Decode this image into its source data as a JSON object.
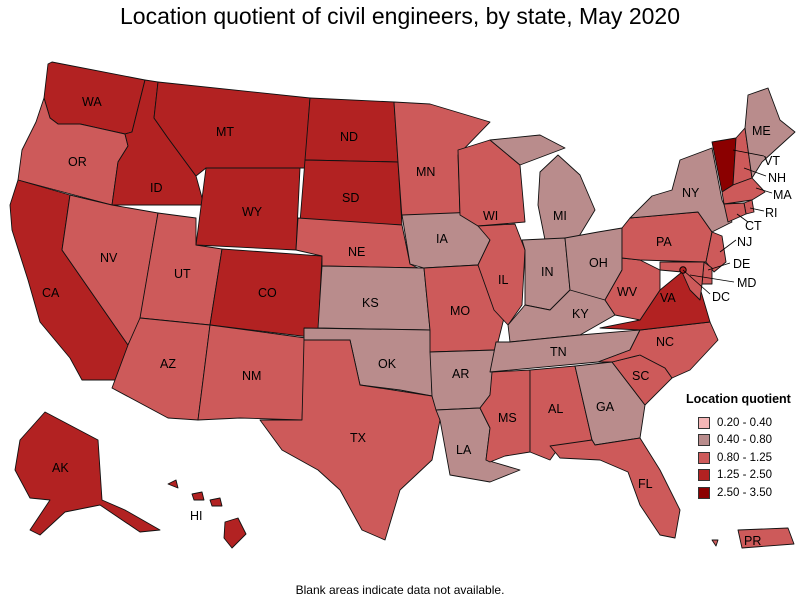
{
  "title": "Location quotient of civil engineers, by state, May 2020",
  "footnote": "Blank areas indicate data not available.",
  "legend": {
    "title": "Location quotient",
    "items": [
      {
        "label": "0.20 - 0.40",
        "color": "#f4b6b6"
      },
      {
        "label": "0.40 - 0.80",
        "color": "#b98c8c"
      },
      {
        "label": "0.80 - 1.25",
        "color": "#cd5a5a"
      },
      {
        "label": "1.25 - 2.50",
        "color": "#b22222"
      },
      {
        "label": "2.50 - 3.50",
        "color": "#8b0000"
      }
    ]
  },
  "states": {
    "WA": {
      "label": "WA",
      "class": "1.25 - 2.50"
    },
    "OR": {
      "label": "OR",
      "class": "0.80 - 1.25"
    },
    "CA": {
      "label": "CA",
      "class": "1.25 - 2.50"
    },
    "ID": {
      "label": "ID",
      "class": "1.25 - 2.50"
    },
    "NV": {
      "label": "NV",
      "class": "0.80 - 1.25"
    },
    "UT": {
      "label": "UT",
      "class": "0.80 - 1.25"
    },
    "AZ": {
      "label": "AZ",
      "class": "0.80 - 1.25"
    },
    "MT": {
      "label": "MT",
      "class": "1.25 - 2.50"
    },
    "WY": {
      "label": "WY",
      "class": "1.25 - 2.50"
    },
    "CO": {
      "label": "CO",
      "class": "1.25 - 2.50"
    },
    "NM": {
      "label": "NM",
      "class": "0.80 - 1.25"
    },
    "ND": {
      "label": "ND",
      "class": "1.25 - 2.50"
    },
    "SD": {
      "label": "SD",
      "class": "1.25 - 2.50"
    },
    "NE": {
      "label": "NE",
      "class": "0.80 - 1.25"
    },
    "KS": {
      "label": "KS",
      "class": "0.40 - 0.80"
    },
    "OK": {
      "label": "OK",
      "class": "0.40 - 0.80"
    },
    "TX": {
      "label": "TX",
      "class": "0.80 - 1.25"
    },
    "MN": {
      "label": "MN",
      "class": "0.80 - 1.25"
    },
    "IA": {
      "label": "IA",
      "class": "0.40 - 0.80"
    },
    "MO": {
      "label": "MO",
      "class": "0.80 - 1.25"
    },
    "AR": {
      "label": "AR",
      "class": "0.40 - 0.80"
    },
    "LA": {
      "label": "LA",
      "class": "0.40 - 0.80"
    },
    "WI": {
      "label": "WI",
      "class": "0.80 - 1.25"
    },
    "IL": {
      "label": "IL",
      "class": "0.80 - 1.25"
    },
    "MI": {
      "label": "MI",
      "class": "0.40 - 0.80"
    },
    "IN": {
      "label": "IN",
      "class": "0.40 - 0.80"
    },
    "OH": {
      "label": "OH",
      "class": "0.40 - 0.80"
    },
    "KY": {
      "label": "KY",
      "class": "0.40 - 0.80"
    },
    "TN": {
      "label": "TN",
      "class": "0.40 - 0.80"
    },
    "MS": {
      "label": "MS",
      "class": "0.80 - 1.25"
    },
    "AL": {
      "label": "AL",
      "class": "0.80 - 1.25"
    },
    "GA": {
      "label": "GA",
      "class": "0.40 - 0.80"
    },
    "FL": {
      "label": "FL",
      "class": "0.80 - 1.25"
    },
    "SC": {
      "label": "SC",
      "class": "0.80 - 1.25"
    },
    "NC": {
      "label": "NC",
      "class": "0.80 - 1.25"
    },
    "VA": {
      "label": "VA",
      "class": "1.25 - 2.50"
    },
    "WV": {
      "label": "WV",
      "class": "0.80 - 1.25"
    },
    "PA": {
      "label": "PA",
      "class": "0.80 - 1.25"
    },
    "NY": {
      "label": "NY",
      "class": "0.40 - 0.80"
    },
    "VT": {
      "label": "VT",
      "class": "2.50 - 3.50"
    },
    "NH": {
      "label": "NH",
      "class": "0.80 - 1.25"
    },
    "ME": {
      "label": "ME",
      "class": "0.40 - 0.80"
    },
    "MA": {
      "label": "MA",
      "class": "0.80 - 1.25"
    },
    "RI": {
      "label": "RI",
      "class": "0.80 - 1.25"
    },
    "CT": {
      "label": "CT",
      "class": "0.80 - 1.25"
    },
    "NJ": {
      "label": "NJ",
      "class": "0.80 - 1.25"
    },
    "DE": {
      "label": "DE",
      "class": "0.80 - 1.25"
    },
    "MD": {
      "label": "MD",
      "class": "0.80 - 1.25"
    },
    "DC": {
      "label": "DC",
      "class": "1.25 - 2.50"
    },
    "AK": {
      "label": "AK",
      "class": "1.25 - 2.50"
    },
    "HI": {
      "label": "HI",
      "class": "1.25 - 2.50"
    },
    "PR": {
      "label": "PR",
      "class": "0.80 - 1.25"
    }
  }
}
